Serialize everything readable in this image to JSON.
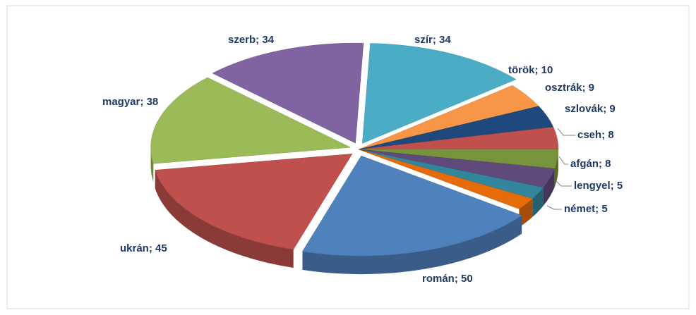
{
  "chart_data": {
    "type": "pie3d",
    "values": [
      34,
      10,
      9,
      9,
      8,
      8,
      5,
      5,
      50,
      45,
      38,
      34
    ],
    "value_labels": [
      "szír; 34",
      "török; 10",
      "osztrák; 9",
      "szlovák; 9",
      "cseh; 8",
      "afgán; 8",
      "lengyel; 5",
      "német; 5",
      "román; 50",
      "ukrán; 45",
      "magyar; 38",
      "szerb; 34"
    ],
    "colors": [
      "#4bacc6",
      "#f79646",
      "#1f497d",
      "#c0504d",
      "#77933c",
      "#604a7b",
      "#31859c",
      "#e46c0a",
      "#4f81bd",
      "#c0504d",
      "#9bbb59",
      "#8064a2"
    ]
  }
}
